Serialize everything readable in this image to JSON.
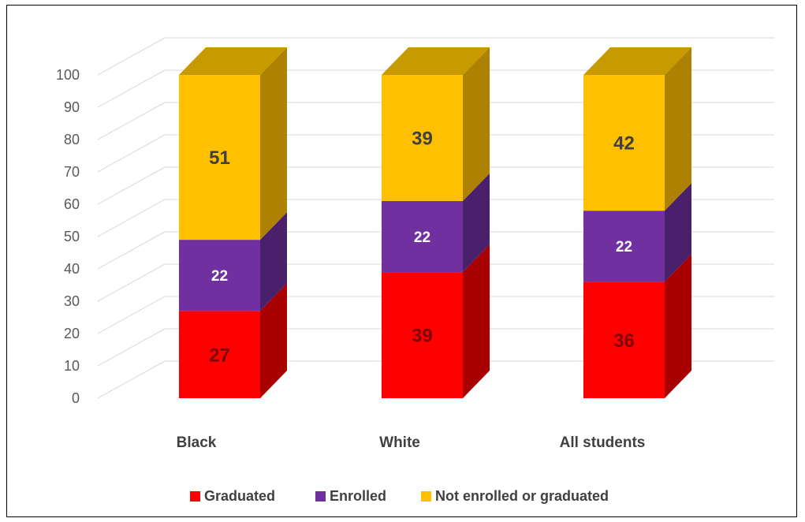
{
  "chart_data": {
    "type": "bar",
    "stacked": true,
    "three_d": true,
    "categories": [
      "Black",
      "White",
      "All students"
    ],
    "series": [
      {
        "name": "Graduated",
        "values": [
          27,
          39,
          36
        ],
        "color": "#ff0000",
        "side_color": "#a80000",
        "label_color": "#7f0000"
      },
      {
        "name": "Enrolled",
        "values": [
          22,
          22,
          22
        ],
        "color": "#7030a0",
        "side_color": "#4a1f6b",
        "label_color": "#ffffff"
      },
      {
        "name": "Not enrolled or graduated",
        "values": [
          51,
          39,
          42
        ],
        "color": "#ffc000",
        "side_color": "#ae8200",
        "top_color": "#c79a00",
        "label_color": "#404040"
      }
    ],
    "ylim": [
      0,
      100
    ],
    "yticks": [
      "0",
      "10",
      "20",
      "30",
      "40",
      "50",
      "60",
      "70",
      "80",
      "90",
      "100"
    ],
    "grid": true,
    "legend_position": "bottom",
    "title": "",
    "xlabel": "",
    "ylabel": ""
  }
}
